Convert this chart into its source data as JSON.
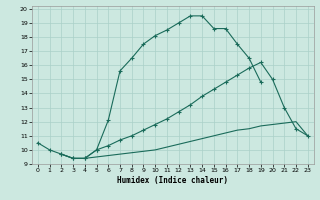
{
  "xlabel": "Humidex (Indice chaleur)",
  "background_color": "#cce8e0",
  "grid_color": "#aad0c8",
  "line_color": "#1a6b5a",
  "xlim": [
    -0.5,
    23.5
  ],
  "ylim": [
    9,
    20.2
  ],
  "xticks": [
    0,
    1,
    2,
    3,
    4,
    5,
    6,
    7,
    8,
    9,
    10,
    11,
    12,
    13,
    14,
    15,
    16,
    17,
    18,
    19,
    20,
    21,
    22,
    23
  ],
  "yticks": [
    9,
    10,
    11,
    12,
    13,
    14,
    15,
    16,
    17,
    18,
    19,
    20
  ],
  "curve1_x": [
    0,
    1,
    2,
    3,
    4,
    5,
    6,
    7,
    8,
    9,
    10,
    11,
    12,
    13,
    14,
    15,
    16,
    17,
    18,
    19
  ],
  "curve1_y": [
    10.5,
    10.0,
    9.7,
    9.4,
    9.4,
    10.0,
    12.1,
    15.6,
    16.5,
    17.5,
    18.1,
    18.5,
    19.0,
    19.5,
    19.5,
    18.6,
    18.6,
    17.5,
    16.5,
    14.8
  ],
  "curve2_x": [
    2,
    3,
    4,
    5,
    6,
    7,
    8,
    9,
    10,
    11,
    12,
    13,
    14,
    15,
    16,
    17,
    18,
    19,
    20,
    21,
    22,
    23
  ],
  "curve2_y": [
    9.7,
    9.4,
    9.4,
    10.0,
    10.3,
    10.7,
    11.0,
    11.4,
    11.8,
    12.2,
    12.7,
    13.2,
    13.8,
    14.3,
    14.8,
    15.3,
    15.8,
    16.2,
    15.0,
    13.0,
    11.5,
    11.0
  ],
  "curve3_x": [
    2,
    3,
    4,
    5,
    6,
    7,
    8,
    9,
    10,
    11,
    12,
    13,
    14,
    15,
    16,
    17,
    18,
    19,
    20,
    21,
    22,
    23
  ],
  "curve3_y": [
    9.7,
    9.4,
    9.4,
    9.5,
    9.6,
    9.7,
    9.8,
    9.9,
    10.0,
    10.2,
    10.4,
    10.6,
    10.8,
    11.0,
    11.2,
    11.4,
    11.5,
    11.7,
    11.8,
    11.9,
    12.0,
    11.0
  ]
}
